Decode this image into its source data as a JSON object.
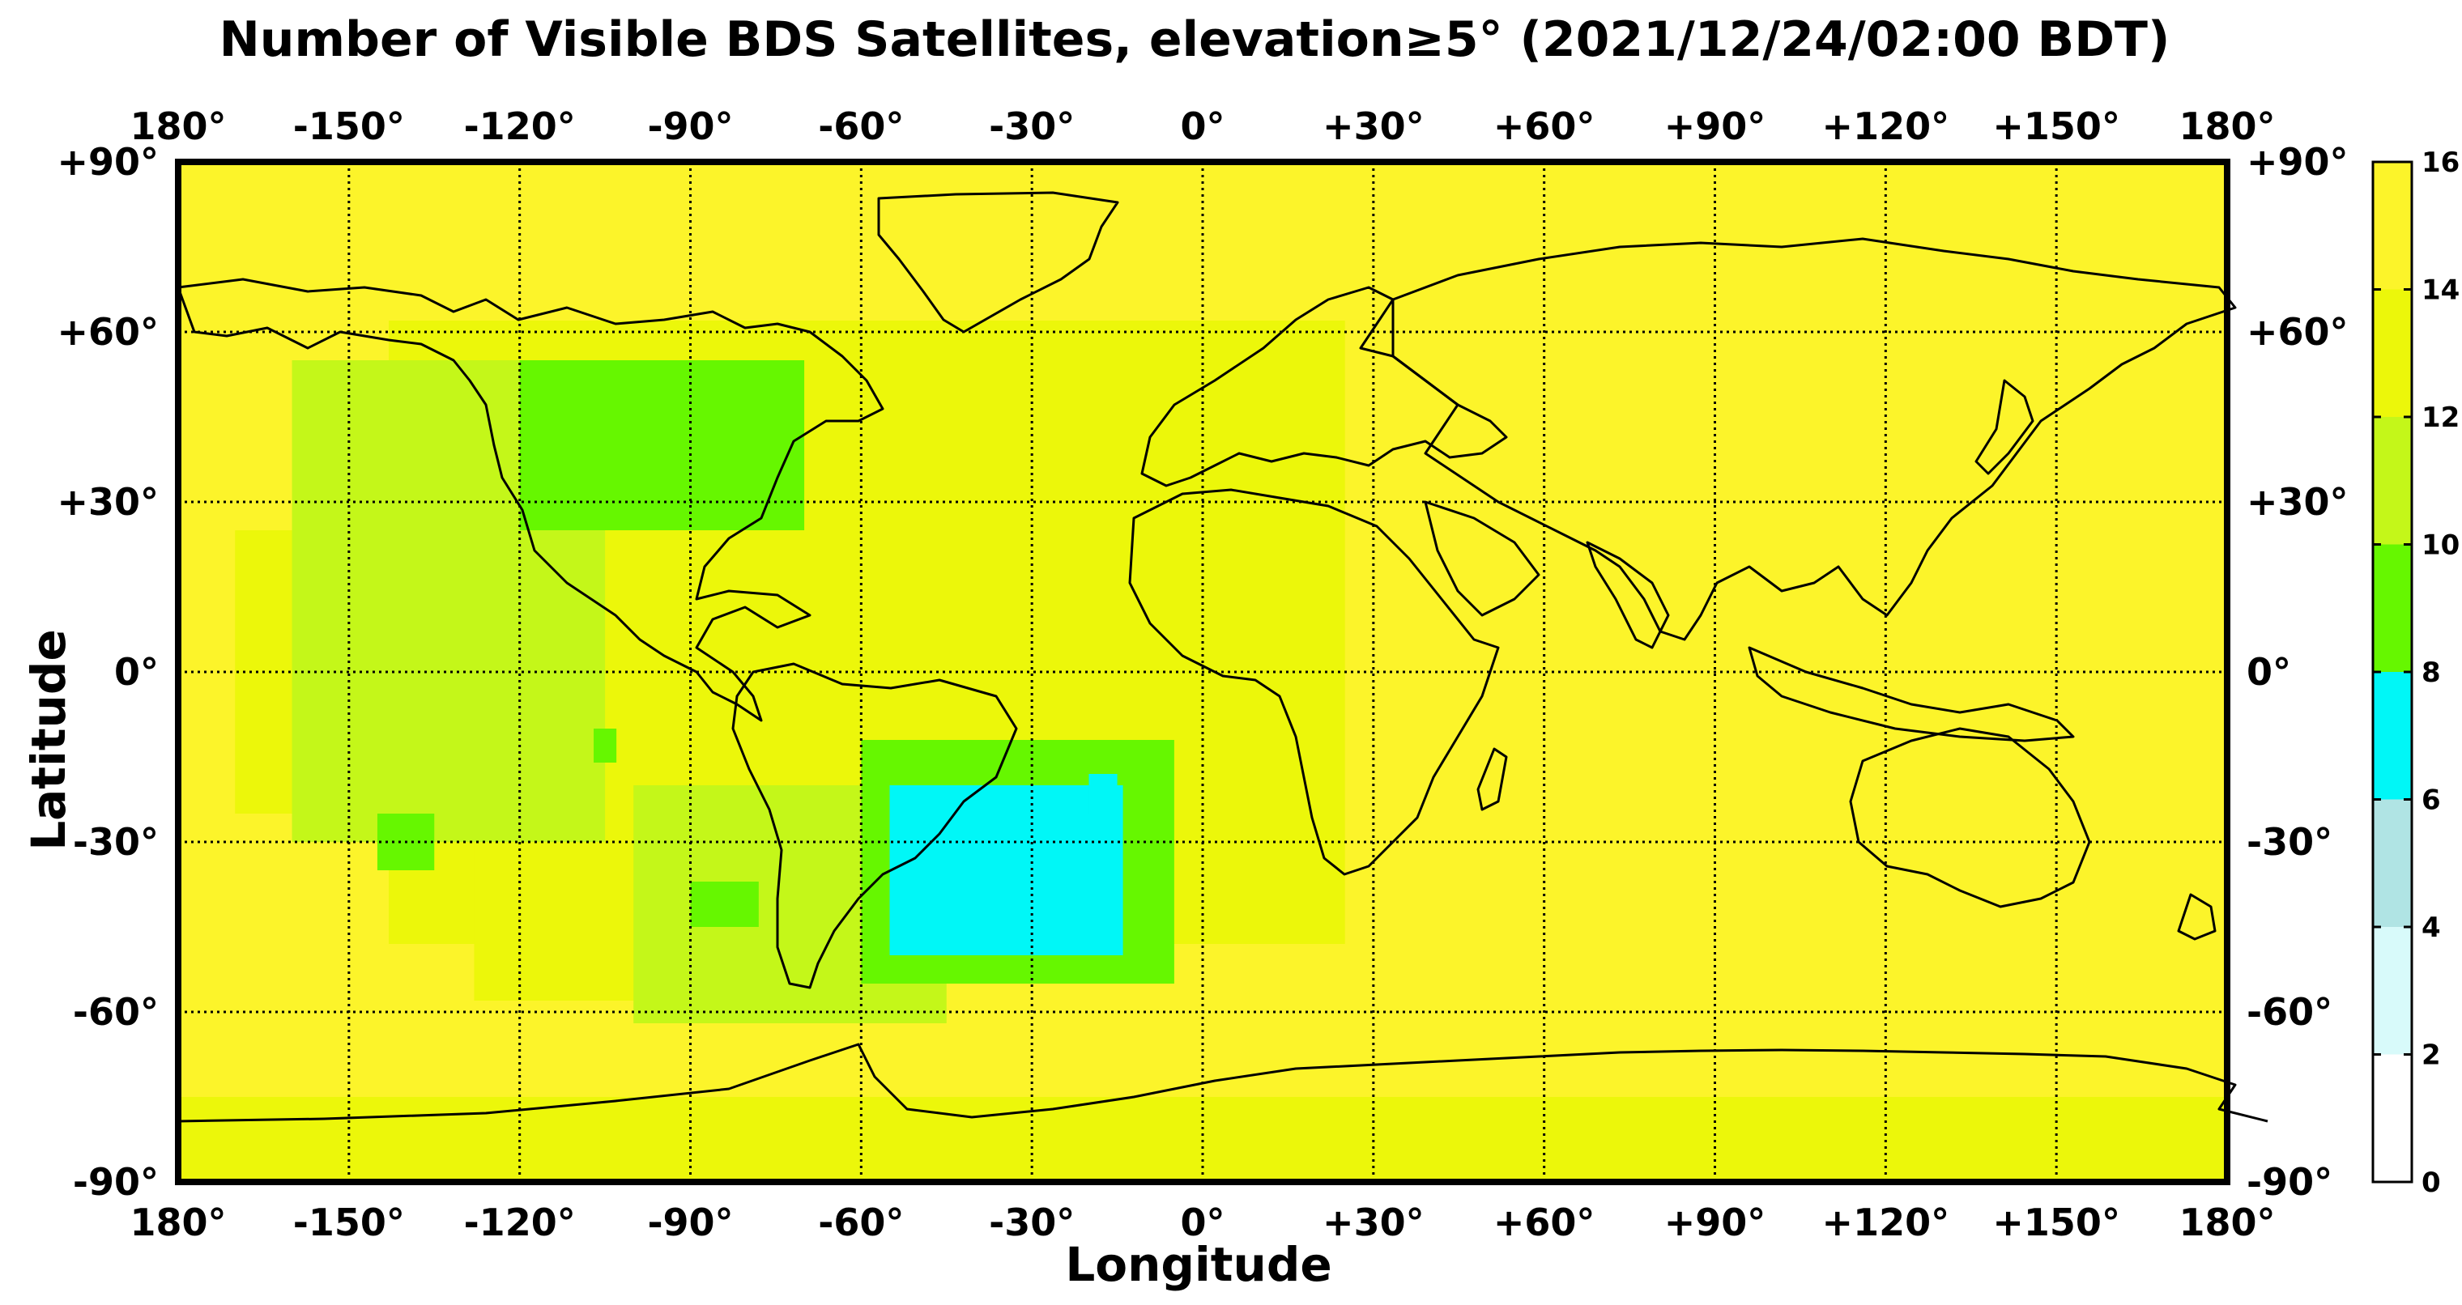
{
  "chart_data": {
    "type": "heatmap",
    "title": "Number of Visible BDS Satellites, elevation≥5° (2021/12/24/02:00 BDT)",
    "xlabel": "Longitude",
    "ylabel": "Latitude",
    "xlim": [
      -180,
      180
    ],
    "ylim": [
      -90,
      90
    ],
    "x_ticks": [
      -180,
      -150,
      -120,
      -90,
      -60,
      -30,
      0,
      30,
      60,
      90,
      120,
      150,
      180
    ],
    "x_tick_labels": [
      "180°",
      "-150°",
      "-120°",
      "-90°",
      "-60°",
      "-30°",
      "0°",
      "+30°",
      "+60°",
      "+90°",
      "+120°",
      "+150°",
      "180°"
    ],
    "y_ticks": [
      90,
      60,
      30,
      0,
      -30,
      -60,
      -90
    ],
    "y_tick_labels": [
      "+90°",
      "+60°",
      "+30°",
      "0°",
      "-30°",
      "-60°",
      "-90°"
    ],
    "grid": true,
    "colorbar": {
      "range": [
        0,
        16
      ],
      "tick_values": [
        0,
        2,
        4,
        6,
        8,
        10,
        12,
        14,
        16
      ],
      "tick_labels": [
        "0",
        "2",
        "4",
        "6",
        "8",
        "10",
        "12",
        "14",
        "16"
      ],
      "levels": [
        {
          "min": 0,
          "max": 2,
          "color": "#ffffff"
        },
        {
          "min": 2,
          "max": 4,
          "color": "#d8fafa"
        },
        {
          "min": 4,
          "max": 6,
          "color": "#b0e4e4"
        },
        {
          "min": 6,
          "max": 8,
          "color": "#00f7f7"
        },
        {
          "min": 8,
          "max": 10,
          "color": "#66f700"
        },
        {
          "min": 10,
          "max": 12,
          "color": "#c4f719"
        },
        {
          "min": 12,
          "max": 14,
          "color": "#ecf70a"
        },
        {
          "min": 14,
          "max": 16,
          "color": "#fcf42a"
        }
      ]
    },
    "background_value": 15,
    "regions": [
      {
        "lon": [
          -143,
          25
        ],
        "lat": [
          -48,
          62
        ],
        "value": 13
      },
      {
        "lon": [
          -170,
          -120
        ],
        "lat": [
          -25,
          25
        ],
        "value": 13
      },
      {
        "lon": [
          -128,
          -78
        ],
        "lat": [
          -58,
          -18
        ],
        "value": 12
      },
      {
        "lon": [
          -160,
          -105
        ],
        "lat": [
          -30,
          55
        ],
        "value": 11
      },
      {
        "lon": [
          -100,
          -45
        ],
        "lat": [
          -62,
          -20
        ],
        "value": 11
      },
      {
        "lon": [
          -55,
          -5
        ],
        "lat": [
          -55,
          -12
        ],
        "value": 11
      },
      {
        "lon": [
          -180,
          180
        ],
        "lat": [
          -90,
          -75
        ],
        "value": 13
      },
      {
        "lon": [
          -120,
          -70
        ],
        "lat": [
          25,
          55
        ],
        "value": 9
      },
      {
        "lon": [
          -60,
          -5
        ],
        "lat": [
          -55,
          -12
        ],
        "value": 9
      },
      {
        "lon": [
          -145,
          -135
        ],
        "lat": [
          -35,
          -25
        ],
        "value": 9
      },
      {
        "lon": [
          -90,
          -78
        ],
        "lat": [
          -45,
          -37
        ],
        "value": 9
      },
      {
        "lon": [
          -107,
          -103
        ],
        "lat": [
          -16,
          -10
        ],
        "value": 9
      },
      {
        "lon": [
          -55,
          -14
        ],
        "lat": [
          -50,
          -20
        ],
        "value": 7
      },
      {
        "lon": [
          -20,
          -15
        ],
        "lat": [
          -25,
          -18
        ],
        "value": 7
      }
    ],
    "basemap": "world coastlines"
  }
}
